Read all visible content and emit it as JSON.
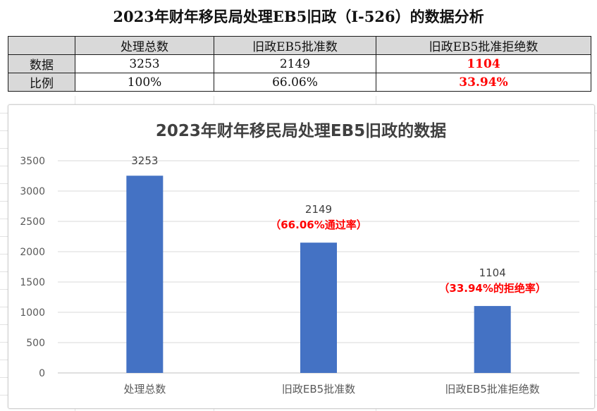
{
  "report_title": "2023年财年移民局处理EB5旧政（I-526）的数据分析",
  "table": {
    "headers": [
      "",
      "处理总数",
      "旧政EB5批准数",
      "旧政EB5批准拒绝数"
    ],
    "rows": [
      {
        "label": "数据",
        "cells": [
          "3253",
          "2149",
          "1104"
        ]
      },
      {
        "label": "比例",
        "cells": [
          "100%",
          "66.06%",
          "33.94%"
        ]
      }
    ],
    "highlight_color": "#ff0000"
  },
  "chart_data": {
    "type": "bar",
    "title": "2023年财年移民局处理EB5旧政的数据",
    "categories": [
      "处理总数",
      "旧政EB5批准数",
      "旧政EB5批准拒绝数"
    ],
    "values": [
      3253,
      2149,
      1104
    ],
    "value_labels": [
      "3253",
      "2149",
      "1104"
    ],
    "annotations": [
      "",
      "（66.06%通过率）",
      "（33.94%的拒绝率）"
    ],
    "yticks": [
      "0",
      "500",
      "1000",
      "1500",
      "2000",
      "2500",
      "3000",
      "3500"
    ],
    "ylim": [
      0,
      3500
    ],
    "grid": true,
    "legend": "none",
    "bar_color": "#4472c4",
    "annotation_color": "#ff0000"
  }
}
